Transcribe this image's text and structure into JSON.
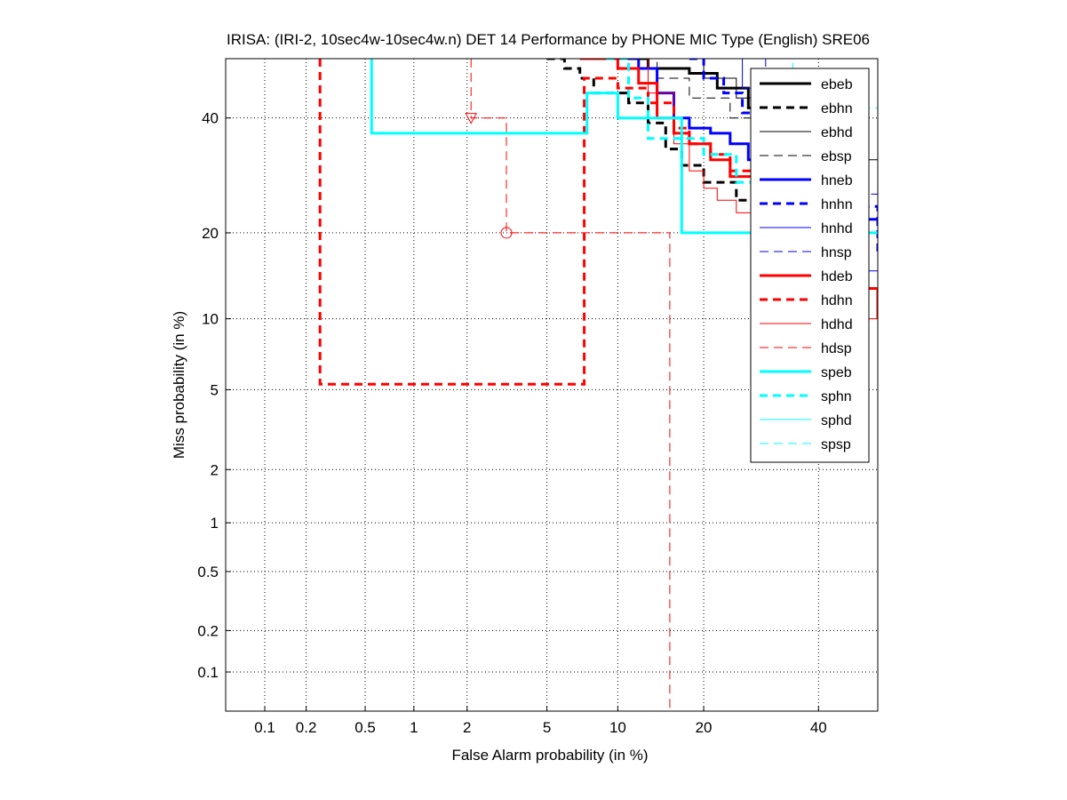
{
  "chart_data": {
    "type": "line",
    "title": "IRISA: (IRI-2, 10sec4w-10sec4w.n) DET 14 Performance by PHONE MIC Type (English) SRE06",
    "xlabel": "False Alarm probability (in %)",
    "ylabel": "Miss probability (in %)",
    "scale": "normal-deviate (probit) on both axes",
    "xlim": [
      0.05,
      52
    ],
    "ylim": [
      0.05,
      52
    ],
    "xticks": [
      {
        "v": 0.1,
        "label": "0.1"
      },
      {
        "v": 0.2,
        "label": "0.2"
      },
      {
        "v": 0.5,
        "label": "0.5"
      },
      {
        "v": 1,
        "label": "1"
      },
      {
        "v": 2,
        "label": "2"
      },
      {
        "v": 5,
        "label": "5"
      },
      {
        "v": 10,
        "label": "10"
      },
      {
        "v": 20,
        "label": "20"
      },
      {
        "v": 40,
        "label": "40"
      }
    ],
    "yticks": [
      {
        "v": 0.1,
        "label": "0.1"
      },
      {
        "v": 0.2,
        "label": "0.2"
      },
      {
        "v": 0.5,
        "label": "0.5"
      },
      {
        "v": 1,
        "label": "1"
      },
      {
        "v": 2,
        "label": "2"
      },
      {
        "v": 5,
        "label": "5"
      },
      {
        "v": 10,
        "label": "10"
      },
      {
        "v": 20,
        "label": "20"
      },
      {
        "v": 40,
        "label": "40"
      }
    ],
    "grid": true,
    "legend_position": "top-right",
    "series": [
      {
        "name": "ebeb",
        "color": "#000000",
        "width": 3,
        "dash": "solid",
        "points": [
          [
            7.5,
            52
          ],
          [
            13,
            50
          ],
          [
            18,
            49
          ],
          [
            22,
            46
          ],
          [
            27,
            42
          ],
          [
            30,
            38
          ],
          [
            34,
            33
          ],
          [
            40,
            27
          ],
          [
            48,
            21
          ]
        ]
      },
      {
        "name": "ebhn",
        "color": "#000000",
        "width": 3,
        "dash": "dashed",
        "points": [
          [
            5,
            52
          ],
          [
            6,
            50
          ],
          [
            7,
            48
          ],
          [
            8,
            45
          ],
          [
            11,
            43
          ],
          [
            13,
            39
          ],
          [
            15,
            34
          ],
          [
            17,
            31
          ],
          [
            20,
            28
          ],
          [
            25,
            25
          ],
          [
            30,
            22
          ],
          [
            38,
            20
          ],
          [
            50,
            19
          ]
        ]
      },
      {
        "name": "ebhd",
        "color": "#000000",
        "width": 1,
        "dash": "solid",
        "points": [
          [
            15,
            52
          ],
          [
            20,
            48
          ],
          [
            25,
            44
          ],
          [
            30,
            40
          ],
          [
            38,
            36
          ],
          [
            45,
            32
          ],
          [
            52,
            38
          ]
        ]
      },
      {
        "name": "ebsp",
        "color": "#000000",
        "width": 1,
        "dash": "dashed",
        "points": [
          [
            10,
            52
          ],
          [
            14,
            48
          ],
          [
            18,
            44
          ],
          [
            24,
            40
          ],
          [
            30,
            36
          ],
          [
            36,
            33
          ],
          [
            44,
            30
          ]
        ]
      },
      {
        "name": "hneb",
        "color": "#0000ff",
        "width": 3,
        "dash": "solid",
        "points": [
          [
            9,
            52
          ],
          [
            12,
            50
          ],
          [
            14,
            45
          ],
          [
            16,
            40
          ],
          [
            18,
            38
          ],
          [
            21,
            37
          ],
          [
            24,
            35
          ],
          [
            27,
            32
          ],
          [
            30,
            28
          ],
          [
            35,
            25
          ],
          [
            40,
            22
          ],
          [
            52,
            21
          ]
        ]
      },
      {
        "name": "hnhn",
        "color": "#0000ff",
        "width": 3,
        "dash": "dashed",
        "points": [
          [
            18,
            52
          ],
          [
            20,
            48
          ],
          [
            23,
            45
          ],
          [
            26,
            41
          ],
          [
            29,
            38
          ],
          [
            33,
            34
          ],
          [
            38,
            30
          ],
          [
            45,
            24
          ],
          [
            52,
            17
          ]
        ]
      },
      {
        "name": "hnhd",
        "color": "#0000ff",
        "width": 1,
        "dash": "solid",
        "points": [
          [
            20,
            52
          ],
          [
            26,
            46
          ],
          [
            32,
            38
          ],
          [
            38,
            30
          ],
          [
            44,
            22
          ],
          [
            48,
            15
          ],
          [
            52,
            8
          ]
        ]
      },
      {
        "name": "hnsp",
        "color": "#0000ff",
        "width": 1,
        "dash": "dashed",
        "points": [
          [
            25,
            52
          ],
          [
            30,
            46
          ],
          [
            35,
            40
          ],
          [
            40,
            33
          ],
          [
            46,
            26
          ],
          [
            52,
            22
          ]
        ]
      },
      {
        "name": "hdeb",
        "color": "#ff0000",
        "width": 3,
        "dash": "solid",
        "points": [
          [
            7,
            52
          ],
          [
            10,
            50
          ],
          [
            12,
            47
          ],
          [
            14,
            40
          ],
          [
            16,
            37
          ],
          [
            18,
            35
          ],
          [
            21,
            32
          ],
          [
            24,
            29
          ],
          [
            28,
            25
          ],
          [
            33,
            20
          ],
          [
            40,
            16
          ],
          [
            48,
            13
          ],
          [
            52,
            10
          ]
        ]
      },
      {
        "name": "hdhn",
        "color": "#ff0000",
        "width": 3,
        "dash": "dashed",
        "points": [
          [
            0.25,
            52
          ],
          [
            0.25,
            5.3
          ],
          [
            7.3,
            5.3
          ],
          [
            7.3,
            48
          ],
          [
            10,
            46
          ],
          [
            13,
            43
          ],
          [
            16,
            38
          ],
          [
            18,
            35
          ],
          [
            21,
            33
          ],
          [
            24,
            30
          ],
          [
            28,
            27
          ],
          [
            34,
            22
          ],
          [
            40,
            18
          ]
        ]
      },
      {
        "name": "hdhd",
        "color": "#ff0000",
        "width": 1,
        "dash": "solid",
        "points": [
          [
            10,
            52
          ],
          [
            13,
            45
          ],
          [
            16,
            35
          ],
          [
            18,
            30
          ],
          [
            20,
            27
          ],
          [
            22,
            25
          ],
          [
            25,
            23
          ],
          [
            28,
            22
          ],
          [
            32,
            20
          ],
          [
            38,
            15
          ],
          [
            45,
            10
          ],
          [
            52,
            6
          ]
        ]
      },
      {
        "name": "hdsp",
        "color": "#ff0000",
        "width": 1,
        "dash": "dashed",
        "points": [
          [
            2.1,
            52
          ],
          [
            2.1,
            40
          ],
          [
            3.2,
            40
          ],
          [
            3.2,
            20
          ],
          [
            15.5,
            20
          ],
          [
            15.5,
            0.05
          ]
        ]
      },
      {
        "name": "speb",
        "color": "#00ffff",
        "width": 3,
        "dash": "solid",
        "points": [
          [
            0.55,
            52
          ],
          [
            0.55,
            37
          ],
          [
            7.5,
            37
          ],
          [
            7.5,
            45
          ],
          [
            10,
            45
          ],
          [
            10,
            40
          ],
          [
            17,
            40
          ],
          [
            17,
            20
          ],
          [
            52,
            20
          ]
        ]
      },
      {
        "name": "sphn",
        "color": "#00ffff",
        "width": 3,
        "dash": "dashed",
        "points": [
          [
            9,
            52
          ],
          [
            11,
            44
          ],
          [
            13,
            36
          ],
          [
            16,
            36
          ],
          [
            20,
            33
          ],
          [
            25,
            28
          ],
          [
            30,
            22
          ],
          [
            38,
            18
          ],
          [
            48,
            15
          ]
        ]
      },
      {
        "name": "sphd",
        "color": "#00ffff",
        "width": 1,
        "dash": "solid",
        "points": [
          [
            5,
            52
          ],
          [
            52,
            52
          ]
        ]
      },
      {
        "name": "spsp",
        "color": "#00ffff",
        "width": 1,
        "dash": "dashed",
        "points": [
          [
            28,
            52
          ],
          [
            35,
            46
          ],
          [
            42,
            42
          ],
          [
            52,
            41
          ]
        ]
      }
    ],
    "markers": [
      {
        "series": "hdsp",
        "shape": "triangle-down",
        "x": 2.1,
        "y": 40,
        "color": "#ff0000"
      },
      {
        "series": "hdsp",
        "shape": "circle",
        "x": 3.2,
        "y": 20,
        "color": "#ff0000"
      }
    ]
  }
}
